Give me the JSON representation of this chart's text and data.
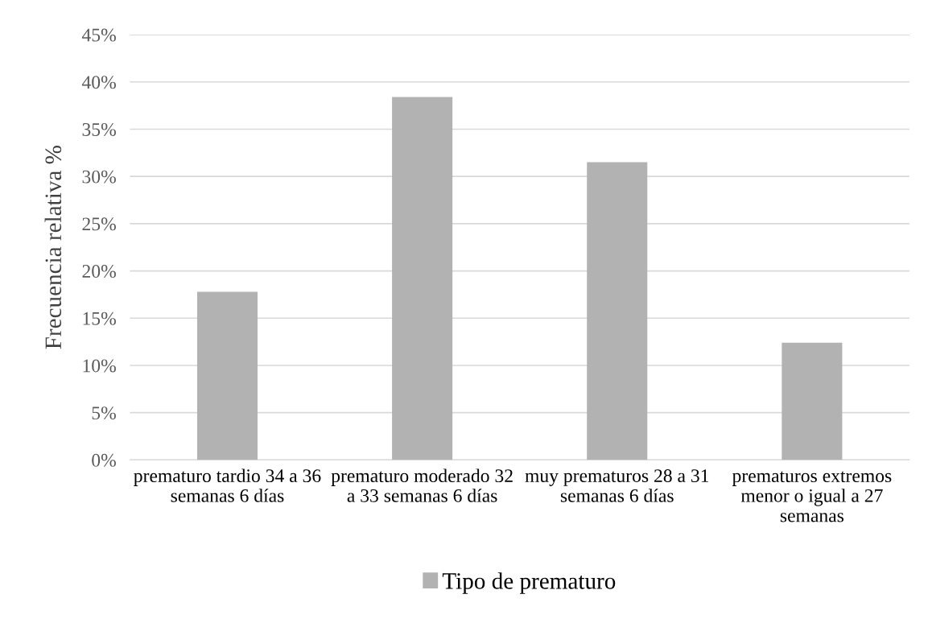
{
  "chart_data": {
    "type": "bar",
    "ylabel": "Frecuencia relativa %",
    "categories": [
      "prematuro tardio 34 a 36 semanas 6 días",
      "prematuro moderado 32 a 33 semanas 6 días",
      "muy prematuros 28 a 31 semanas 6 días",
      "prematuros extremos menor o igual a 27 semanas"
    ],
    "series": [
      {
        "name": "Tipo de prematuro",
        "color": "#b2b2b2",
        "values": [
          17.8,
          38.4,
          31.5,
          12.4
        ]
      }
    ],
    "ylim": [
      0,
      45
    ],
    "yticks": [
      {
        "value": 0,
        "label": "0%"
      },
      {
        "value": 5,
        "label": "5%"
      },
      {
        "value": 10,
        "label": "10%"
      },
      {
        "value": 15,
        "label": "15%"
      },
      {
        "value": 20,
        "label": "20%"
      },
      {
        "value": 25,
        "label": "25%"
      },
      {
        "value": 30,
        "label": "30%"
      },
      {
        "value": 35,
        "label": "35%"
      },
      {
        "value": 40,
        "label": "40%"
      },
      {
        "value": 45,
        "label": "45%"
      }
    ],
    "grid": "y",
    "legend": "bottom"
  }
}
